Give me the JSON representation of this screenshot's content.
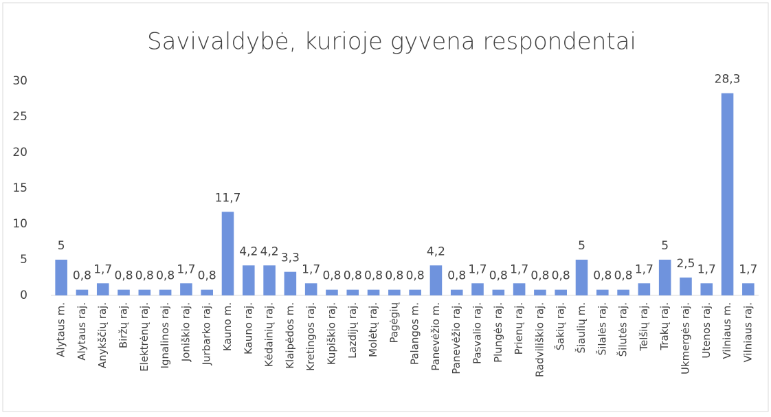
{
  "chart_data": {
    "type": "bar",
    "title": "Savivaldybė, kurioje gyvena respondentai",
    "categories": [
      "Alytaus m.",
      "Alytaus raj.",
      "Anykščių raj.",
      "Biržų raj.",
      "Elektrėnų raj.",
      "Ignalinos raj.",
      "Joniškio raj.",
      "Jurbarko raj.",
      "Kauno m.",
      "Kauno raj.",
      "Kėdainių raj.",
      "Klaipėdos m.",
      "Kretingos raj.",
      "Kupiškio raj.",
      "Lazdijų raj.",
      "Molėtų raj.",
      "Pagėgių",
      "Palangos m.",
      "Panevėžio m.",
      "Panevėžio raj.",
      "Pasvalio raj.",
      "Plungės raj.",
      "Prienų raj.",
      "Radviliškio raj.",
      "Šakių raj.",
      "Šiaulių m.",
      "Šilalės raj.",
      "Šilutės raj.",
      "Telšių raj.",
      "Trakų raj.",
      "Ukmergės raj.",
      "Utenos raj.",
      "Vilniaus m.",
      "Vilniaus raj."
    ],
    "values": [
      5,
      0.8,
      1.7,
      0.8,
      0.8,
      0.8,
      1.7,
      0.8,
      11.7,
      4.2,
      4.2,
      3.3,
      1.7,
      0.8,
      0.8,
      0.8,
      0.8,
      0.8,
      4.2,
      0.8,
      1.7,
      0.8,
      1.7,
      0.8,
      0.8,
      5,
      0.8,
      0.8,
      1.7,
      5,
      2.5,
      1.7,
      28.3,
      1.7
    ],
    "value_labels": [
      "5",
      "0,8",
      "1,7",
      "0,8",
      "0,8",
      "0,8",
      "1,7",
      "0,8",
      "11,7",
      "4,2",
      "4,2",
      "3,3",
      "1,7",
      "0,8",
      "0,8",
      "0,8",
      "0,8",
      "0,8",
      "4,2",
      "0,8",
      "1,7",
      "0,8",
      "1,7",
      "0,8",
      "0,8",
      "5",
      "0,8",
      "0,8",
      "1,7",
      "5",
      "2,5",
      "1,7",
      "28,3",
      "1,7"
    ],
    "color": "#6f93dd",
    "ylim": [
      0,
      30
    ],
    "yticks": [
      0,
      5,
      10,
      15,
      20,
      25,
      30
    ],
    "grid": false
  }
}
